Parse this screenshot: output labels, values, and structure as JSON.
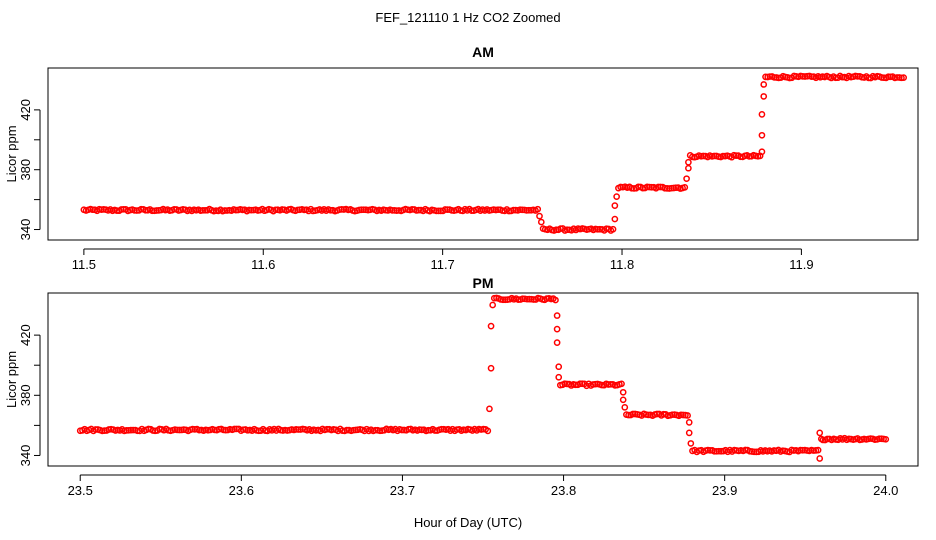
{
  "figure": {
    "title": "FEF_121110  1 Hz CO2 Zoomed",
    "xlabel": "Hour of Day (UTC)"
  },
  "colors": {
    "marker": "#ff0000",
    "axis": "#000000",
    "background": "#ffffff"
  },
  "chart_data": [
    {
      "type": "scatter",
      "title": "AM",
      "xlabel": "",
      "ylabel": "Licor ppm",
      "xlim": [
        11.48,
        11.965
      ],
      "ylim": [
        333,
        448
      ],
      "xticks": [
        11.5,
        11.6,
        11.7,
        11.8,
        11.9
      ],
      "xtick_labels": [
        "11.5",
        "11.6",
        "11.7",
        "11.8",
        "11.9"
      ],
      "yticks": [
        340,
        380,
        420
      ],
      "ytick_labels": [
        "340",
        "380",
        "420"
      ],
      "grid": false,
      "segments": [
        {
          "x0": 11.5,
          "x1": 11.753,
          "y": 353
        },
        {
          "x0": 11.756,
          "x1": 11.795,
          "y": 340
        },
        {
          "x0": 11.798,
          "x1": 11.835,
          "y": 368
        },
        {
          "x0": 11.838,
          "x1": 11.877,
          "y": 389
        },
        {
          "x0": 11.88,
          "x1": 11.957,
          "y": 442
        }
      ],
      "transitions": [
        {
          "x": 11.754,
          "y": 349
        },
        {
          "x": 11.755,
          "y": 345
        },
        {
          "x": 11.796,
          "y": 347
        },
        {
          "x": 11.796,
          "y": 356
        },
        {
          "x": 11.797,
          "y": 362
        },
        {
          "x": 11.836,
          "y": 374
        },
        {
          "x": 11.837,
          "y": 381
        },
        {
          "x": 11.837,
          "y": 385
        },
        {
          "x": 11.878,
          "y": 392
        },
        {
          "x": 11.878,
          "y": 403
        },
        {
          "x": 11.878,
          "y": 417
        },
        {
          "x": 11.879,
          "y": 429
        },
        {
          "x": 11.879,
          "y": 437
        }
      ]
    },
    {
      "type": "scatter",
      "title": "PM",
      "xlabel": "",
      "ylabel": "Licor ppm",
      "xlim": [
        23.48,
        24.02
      ],
      "ylim": [
        333,
        448
      ],
      "xticks": [
        23.5,
        23.6,
        23.7,
        23.8,
        23.9,
        24.0
      ],
      "xtick_labels": [
        "23.5",
        "23.6",
        "23.7",
        "23.8",
        "23.9",
        "24.0"
      ],
      "yticks": [
        340,
        380,
        420
      ],
      "ytick_labels": [
        "340",
        "380",
        "420"
      ],
      "grid": false,
      "segments": [
        {
          "x0": 23.5,
          "x1": 23.753,
          "y": 357
        },
        {
          "x0": 23.757,
          "x1": 23.795,
          "y": 444
        },
        {
          "x0": 23.798,
          "x1": 23.836,
          "y": 387
        },
        {
          "x0": 23.839,
          "x1": 23.877,
          "y": 367
        },
        {
          "x0": 23.88,
          "x1": 23.958,
          "y": 343
        },
        {
          "x0": 23.961,
          "x1": 24.0,
          "y": 351
        }
      ],
      "transitions": [
        {
          "x": 23.754,
          "y": 371
        },
        {
          "x": 23.755,
          "y": 398
        },
        {
          "x": 23.755,
          "y": 426
        },
        {
          "x": 23.756,
          "y": 440
        },
        {
          "x": 23.796,
          "y": 433
        },
        {
          "x": 23.796,
          "y": 424
        },
        {
          "x": 23.796,
          "y": 415
        },
        {
          "x": 23.797,
          "y": 399
        },
        {
          "x": 23.797,
          "y": 392
        },
        {
          "x": 23.837,
          "y": 382
        },
        {
          "x": 23.837,
          "y": 377
        },
        {
          "x": 23.838,
          "y": 372
        },
        {
          "x": 23.878,
          "y": 362
        },
        {
          "x": 23.878,
          "y": 355
        },
        {
          "x": 23.879,
          "y": 348
        },
        {
          "x": 23.959,
          "y": 338
        },
        {
          "x": 23.959,
          "y": 355
        },
        {
          "x": 23.96,
          "y": 351
        }
      ]
    }
  ]
}
